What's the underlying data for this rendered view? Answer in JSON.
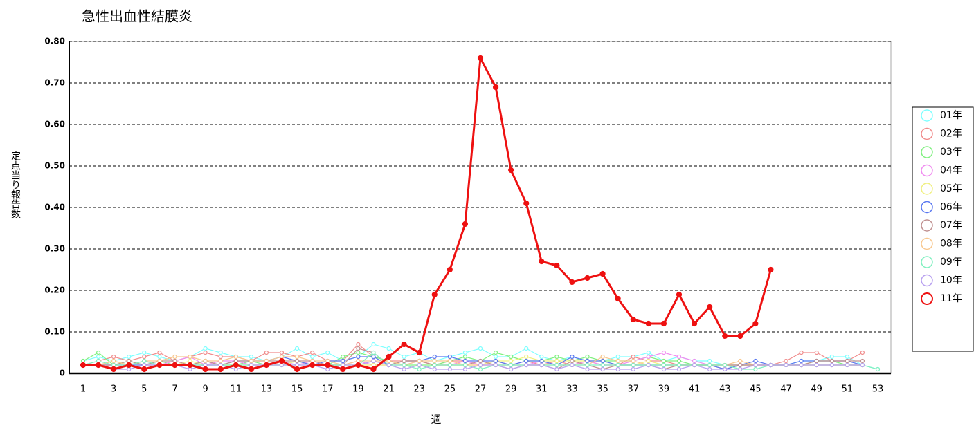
{
  "chart_data": {
    "type": "line",
    "title": "急性出血性結膜炎",
    "x_label": "週",
    "y_label": "定点当り報告数",
    "categories": [
      1,
      null,
      3,
      null,
      5,
      null,
      7,
      null,
      9,
      null,
      11,
      null,
      13,
      null,
      15,
      null,
      17,
      null,
      19,
      null,
      21,
      null,
      23,
      null,
      25,
      null,
      27,
      null,
      29,
      null,
      31,
      null,
      33,
      null,
      35,
      null,
      37,
      null,
      39,
      null,
      41,
      null,
      43,
      null,
      45,
      null,
      47,
      null,
      49,
      null,
      51,
      null,
      53
    ],
    "ylim": [
      0,
      0.8
    ],
    "yticks": [
      0,
      {
        "value": 0.1,
        "label": "0.10"
      },
      {
        "value": 0.2,
        "label": "0.20"
      },
      {
        "value": 0.3,
        "label": "0.30"
      },
      {
        "value": 0.4,
        "label": "0.40"
      },
      {
        "value": 0.5,
        "label": "0.50"
      },
      {
        "value": 0.6,
        "label": "0.60"
      },
      {
        "value": 0.7,
        "label": "0.70"
      },
      {
        "value": 0.8,
        "label": "0.80"
      }
    ],
    "grid": true,
    "legend": "right",
    "series": [
      {
        "name": "01年",
        "color": "#7fffff",
        "values": [
          0.03,
          0.04,
          0.03,
          0.04,
          0.05,
          0.04,
          0.03,
          0.04,
          0.06,
          0.05,
          0.04,
          0.04,
          0.03,
          0.04,
          0.06,
          0.04,
          0.05,
          0.03,
          0.04,
          0.07,
          0.06,
          0.04,
          0.05,
          0.03,
          0.04,
          0.05,
          0.06,
          0.04,
          0.04,
          0.06,
          0.04,
          0.03,
          0.04,
          0.03,
          0.03,
          0.04,
          0.04,
          0.05,
          0.03,
          0.04,
          0.03,
          0.03,
          0.02,
          0.02,
          0.02,
          0.02,
          0.02,
          0.03,
          0.03,
          0.04,
          0.04,
          0.02,
          0.01
        ]
      },
      {
        "name": "02年",
        "color": "#f08c8c",
        "values": [
          0.02,
          0.03,
          0.04,
          0.03,
          0.04,
          0.05,
          0.03,
          0.04,
          0.05,
          0.04,
          0.04,
          0.03,
          0.05,
          0.05,
          0.04,
          0.05,
          0.03,
          0.03,
          0.07,
          0.04,
          0.03,
          0.03,
          0.03,
          0.02,
          0.03,
          0.03,
          0.02,
          0.03,
          0.02,
          0.03,
          0.02,
          0.03,
          0.02,
          0.03,
          0.02,
          0.02,
          0.04,
          0.03,
          0.03,
          0.02,
          0.02,
          0.02,
          0.01,
          0.02,
          0.02,
          0.02,
          0.03,
          0.05,
          0.05,
          0.03,
          0.03,
          0.05,
          null
        ]
      },
      {
        "name": "03年",
        "color": "#80f080",
        "values": [
          0.03,
          0.05,
          0.02,
          0.03,
          0.02,
          0.03,
          0.02,
          0.02,
          0.03,
          0.02,
          0.02,
          0.03,
          0.02,
          0.02,
          0.03,
          0.02,
          0.02,
          0.04,
          0.05,
          0.04,
          0.03,
          0.02,
          0.02,
          0.02,
          0.03,
          0.04,
          0.03,
          0.05,
          0.04,
          0.03,
          0.03,
          0.04,
          0.03,
          0.04,
          0.03,
          0.03,
          0.03,
          0.04,
          0.03,
          0.03,
          0.02,
          0.02,
          0.02,
          0.02,
          0.02,
          0.02,
          0.02,
          0.02,
          0.03,
          0.03,
          0.02,
          0.02,
          null
        ]
      },
      {
        "name": "04年",
        "color": "#f08cf0",
        "values": [
          0.02,
          0.02,
          0.02,
          0.02,
          0.03,
          0.02,
          0.03,
          0.04,
          0.02,
          0.03,
          0.03,
          0.02,
          0.02,
          0.03,
          0.02,
          0.03,
          0.02,
          0.02,
          0.03,
          0.02,
          0.02,
          0.02,
          0.03,
          0.02,
          0.02,
          0.03,
          0.02,
          0.02,
          0.02,
          0.02,
          0.03,
          0.02,
          0.02,
          0.03,
          0.02,
          0.02,
          0.03,
          0.04,
          0.05,
          0.04,
          0.03,
          0.02,
          0.02,
          0.02,
          0.02,
          0.02,
          0.02,
          0.02,
          0.02,
          0.02,
          0.02,
          0.02,
          null
        ]
      },
      {
        "name": "05年",
        "color": "#f0f080",
        "values": [
          0.02,
          0.02,
          0.03,
          0.02,
          0.02,
          0.02,
          0.02,
          0.03,
          0.02,
          0.02,
          0.02,
          0.02,
          0.02,
          0.02,
          0.03,
          0.02,
          0.02,
          0.02,
          0.02,
          0.02,
          0.02,
          0.03,
          0.03,
          0.02,
          0.02,
          0.02,
          0.02,
          0.03,
          0.03,
          0.04,
          0.03,
          0.03,
          0.03,
          0.03,
          0.03,
          0.02,
          0.02,
          0.03,
          0.02,
          0.02,
          0.02,
          0.02,
          0.02,
          0.02,
          0.02,
          0.02,
          0.02,
          0.02,
          0.02,
          0.02,
          0.02,
          0.02,
          null
        ]
      },
      {
        "name": "06年",
        "color": "#5a78f0",
        "values": [
          0.02,
          0.02,
          0.02,
          0.02,
          0.02,
          0.02,
          0.02,
          0.02,
          0.02,
          0.02,
          0.03,
          0.03,
          0.03,
          0.04,
          0.03,
          0.02,
          0.03,
          0.03,
          0.04,
          0.04,
          0.02,
          0.03,
          0.03,
          0.04,
          0.04,
          0.03,
          0.03,
          0.03,
          0.02,
          0.03,
          0.03,
          0.02,
          0.04,
          0.03,
          0.03,
          0.02,
          0.02,
          0.02,
          0.02,
          0.02,
          0.02,
          0.02,
          0.01,
          0.02,
          0.03,
          0.02,
          0.02,
          0.03,
          0.03,
          0.03,
          0.03,
          0.02,
          null
        ]
      },
      {
        "name": "07年",
        "color": "#c09090",
        "values": [
          0.02,
          0.02,
          0.02,
          0.03,
          0.02,
          0.03,
          0.03,
          0.02,
          0.03,
          0.02,
          0.03,
          0.03,
          0.03,
          0.03,
          0.03,
          0.03,
          0.02,
          0.02,
          0.06,
          0.05,
          0.02,
          0.03,
          0.03,
          0.02,
          0.02,
          0.02,
          0.03,
          0.02,
          0.01,
          0.02,
          0.02,
          0.01,
          0.03,
          0.02,
          0.01,
          0.02,
          0.02,
          0.02,
          0.01,
          0.02,
          0.02,
          0.02,
          0.02,
          0.02,
          0.02,
          0.02,
          0.02,
          0.02,
          0.03,
          0.03,
          0.03,
          0.03,
          null
        ]
      },
      {
        "name": "08年",
        "color": "#f8c890",
        "values": [
          0.02,
          0.02,
          0.03,
          0.02,
          0.03,
          0.03,
          0.04,
          0.04,
          0.03,
          0.03,
          0.04,
          0.03,
          0.03,
          0.04,
          0.04,
          0.03,
          0.03,
          0.02,
          0.03,
          0.03,
          0.03,
          0.02,
          0.03,
          0.03,
          0.03,
          0.02,
          0.02,
          0.02,
          0.02,
          0.02,
          0.02,
          0.02,
          0.02,
          0.02,
          0.04,
          0.03,
          0.03,
          0.02,
          0.02,
          0.02,
          0.02,
          0.02,
          0.02,
          0.03,
          0.02,
          0.02,
          0.02,
          0.02,
          0.02,
          0.02,
          0.02,
          0.02,
          null
        ]
      },
      {
        "name": "09年",
        "color": "#80f0c0",
        "values": [
          0.02,
          0.03,
          0.02,
          0.02,
          0.03,
          0.02,
          0.02,
          0.02,
          0.02,
          0.02,
          0.02,
          0.02,
          0.02,
          0.02,
          0.02,
          0.02,
          0.02,
          0.02,
          0.02,
          0.05,
          0.02,
          0.02,
          0.01,
          0.02,
          0.02,
          0.02,
          0.01,
          0.02,
          0.02,
          0.02,
          0.02,
          0.02,
          0.02,
          0.02,
          0.02,
          0.02,
          0.02,
          0.02,
          0.02,
          0.02,
          0.02,
          0.02,
          0.02,
          0.01,
          0.01,
          0.02,
          0.02,
          0.02,
          0.02,
          0.02,
          0.02,
          0.02,
          0.01
        ]
      },
      {
        "name": "10年",
        "color": "#b8a0f0",
        "values": [
          0.02,
          0.02,
          0.01,
          0.01,
          0.02,
          0.02,
          0.02,
          0.01,
          0.02,
          0.02,
          0.01,
          0.02,
          0.02,
          0.02,
          0.02,
          0.02,
          0.01,
          0.02,
          0.02,
          0.03,
          0.02,
          0.01,
          0.02,
          0.01,
          0.01,
          0.01,
          0.02,
          0.02,
          0.01,
          0.02,
          0.02,
          0.01,
          0.02,
          0.01,
          0.01,
          0.01,
          0.01,
          0.02,
          0.01,
          0.01,
          0.02,
          0.01,
          0.01,
          0.01,
          0.02,
          0.02,
          0.02,
          0.02,
          0.02,
          0.02,
          0.02,
          0.02,
          null
        ]
      },
      {
        "name": "11年",
        "color": "#ee1111",
        "values": [
          0.02,
          0.02,
          0.01,
          0.02,
          0.01,
          0.02,
          0.02,
          0.02,
          0.01,
          0.01,
          0.02,
          0.01,
          0.02,
          0.03,
          0.01,
          0.02,
          0.02,
          0.01,
          0.02,
          0.01,
          0.04,
          0.07,
          0.05,
          0.19,
          0.25,
          0.36,
          0.76,
          0.69,
          0.49,
          0.41,
          0.27,
          0.26,
          0.22,
          0.23,
          0.24,
          0.18,
          0.13,
          0.12,
          0.12,
          0.19,
          0.12,
          0.16,
          0.09,
          0.09,
          0.12,
          0.25,
          null,
          null,
          null,
          null,
          null,
          null,
          null
        ]
      }
    ]
  }
}
